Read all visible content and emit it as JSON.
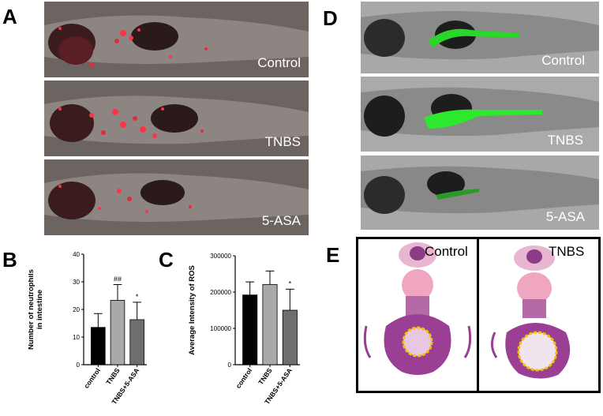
{
  "panel_labels": {
    "a": "A",
    "b": "B",
    "c": "C",
    "d": "D",
    "e": "E"
  },
  "panel_a": {
    "captions": [
      "Control",
      "TNBS",
      "5-ASA"
    ]
  },
  "panel_d": {
    "captions": [
      "Control",
      "TNBS",
      "5-ASA"
    ]
  },
  "panel_e": {
    "captions": [
      "Control",
      "TNBS"
    ]
  },
  "chart_data": [
    {
      "type": "bar",
      "panel": "B",
      "categories": [
        "control",
        "TNBS",
        "TNBS+5-ASA"
      ],
      "values": [
        13.5,
        23.3,
        16.3
      ],
      "errors": [
        5.0,
        5.7,
        6.3
      ],
      "annotations": [
        "",
        "##",
        "*"
      ],
      "ylabel": "Number of neutrophils in intestine",
      "ylabel_lines": [
        "Number of neutrophils",
        "in intestine"
      ],
      "ylim": [
        0,
        40
      ],
      "yticks": [
        "0",
        "10",
        "20",
        "30",
        "40"
      ],
      "colors": [
        "#000000",
        "#a9a9a9",
        "#6e6e6e"
      ]
    },
    {
      "type": "bar",
      "panel": "C",
      "categories": [
        "control",
        "TNBS",
        "TNBS+5-ASA"
      ],
      "values": [
        192000,
        221000,
        150000
      ],
      "errors": [
        36000,
        37000,
        58000
      ],
      "annotations": [
        "",
        "",
        "*"
      ],
      "ylabel": "Average Intensity of ROS",
      "ylim": [
        0,
        300000
      ],
      "yticks": [
        "0",
        "100000",
        "200000",
        "300000"
      ],
      "colors": [
        "#000000",
        "#a9a9a9",
        "#6e6e6e"
      ]
    }
  ]
}
